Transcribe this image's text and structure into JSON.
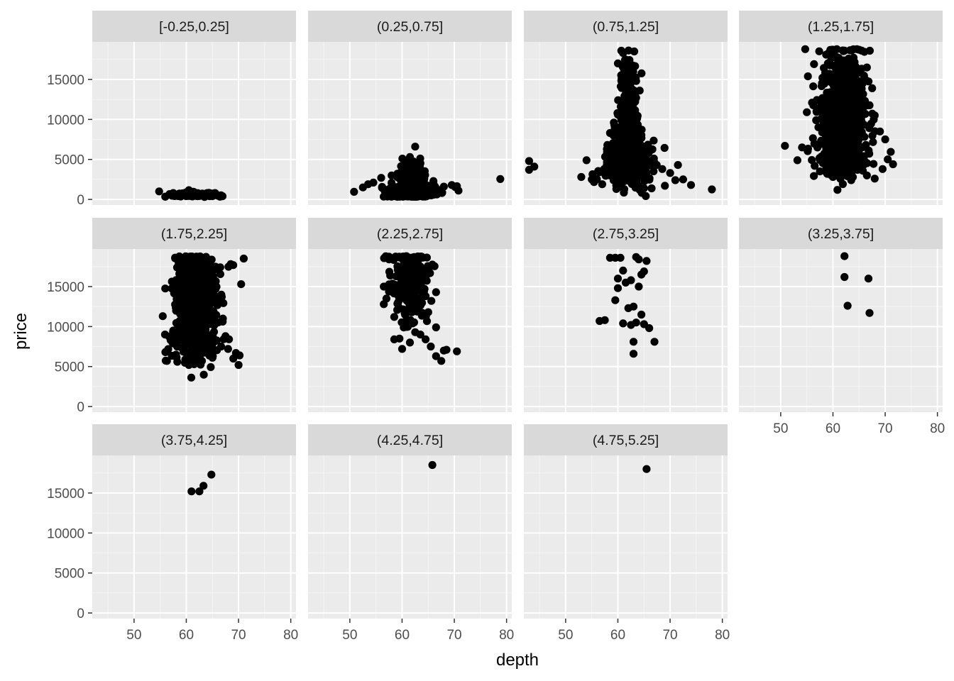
{
  "chart_data": {
    "type": "scatter",
    "facet_layout": "wrap",
    "xlabel": "depth",
    "ylabel": "price",
    "xlim": [
      42,
      81
    ],
    "ylim": [
      -700,
      19700
    ],
    "x_ticks": [
      50,
      60,
      70,
      80
    ],
    "y_ticks": [
      0,
      5000,
      10000,
      15000
    ],
    "grid": true,
    "point_color": "#000000",
    "panel_background": "#ebebeb",
    "strip_background": "#d9d9d9",
    "panels": [
      {
        "label": "[-0.25,0.25]",
        "clusters": [
          {
            "cx": 62.0,
            "cy": 550,
            "sx": 2.3,
            "sy": 170,
            "n": 100
          }
        ],
        "points": [
          [
            54.8,
            1000
          ],
          [
            56.0,
            350
          ],
          [
            58.0,
            520
          ],
          [
            60.5,
            1150
          ],
          [
            63.5,
            300
          ],
          [
            66.0,
            470
          ],
          [
            65.5,
            620
          ],
          [
            57.5,
            800
          ],
          [
            61.5,
            900
          ],
          [
            64.0,
            800
          ]
        ]
      },
      {
        "label": "(0.25,0.75]",
        "clusters": [
          {
            "cx": 61.8,
            "cy": 700,
            "sx": 2.2,
            "sy": 420,
            "n": 300
          },
          {
            "cx": 61.8,
            "cy": 1800,
            "sx": 1.6,
            "sy": 850,
            "n": 180
          },
          {
            "cx": 61.8,
            "cy": 3700,
            "sx": 1.0,
            "sy": 900,
            "n": 45
          }
        ],
        "points": [
          [
            50.8,
            950
          ],
          [
            52.5,
            1500
          ],
          [
            53.5,
            1900
          ],
          [
            54.5,
            2100
          ],
          [
            56.0,
            2700
          ],
          [
            58.0,
            3000
          ],
          [
            62.5,
            6600
          ],
          [
            61.5,
            5300
          ],
          [
            63.5,
            4500
          ],
          [
            66.0,
            2300
          ],
          [
            68.0,
            1600
          ],
          [
            69.5,
            1800
          ],
          [
            70.5,
            1650
          ],
          [
            70.8,
            1100
          ],
          [
            78.8,
            2550
          ],
          [
            66.5,
            900
          ],
          [
            67.5,
            1200
          ]
        ]
      },
      {
        "label": "(0.75,1.25]",
        "clusters": [
          {
            "cx": 61.9,
            "cy": 4700,
            "sx": 2.0,
            "sy": 1400,
            "n": 450
          },
          {
            "cx": 61.8,
            "cy": 9500,
            "sx": 1.0,
            "sy": 2500,
            "n": 200
          },
          {
            "cx": 61.8,
            "cy": 14500,
            "sx": 0.8,
            "sy": 2200,
            "n": 60
          }
        ],
        "points": [
          [
            43.0,
            4800
          ],
          [
            43.0,
            3700
          ],
          [
            44.0,
            4100
          ],
          [
            53.0,
            2800
          ],
          [
            54.0,
            4900
          ],
          [
            56.5,
            3400
          ],
          [
            58.0,
            6800
          ],
          [
            59.0,
            5600
          ],
          [
            60.0,
            17000
          ],
          [
            61.0,
            18300
          ],
          [
            62.0,
            16000
          ],
          [
            63.5,
            14800
          ],
          [
            65.5,
            5000
          ],
          [
            67.0,
            4600
          ],
          [
            68.5,
            3800
          ],
          [
            70.0,
            3300
          ],
          [
            71.0,
            2400
          ],
          [
            72.5,
            2500
          ],
          [
            74.0,
            1800
          ],
          [
            78.0,
            1250
          ],
          [
            71.5,
            4300
          ],
          [
            69.0,
            1700
          ],
          [
            65.0,
            1400
          ],
          [
            57.0,
            1900
          ],
          [
            55.0,
            2500
          ],
          [
            60.0,
            10600
          ],
          [
            63.5,
            12700
          ],
          [
            64.0,
            6900
          ],
          [
            58.5,
            8300
          ]
        ]
      },
      {
        "label": "(1.25,1.75]",
        "clusters": [
          {
            "cx": 61.8,
            "cy": 11000,
            "sx": 2.1,
            "sy": 3700,
            "n": 700
          },
          {
            "cx": 61.8,
            "cy": 5500,
            "sx": 2.6,
            "sy": 1300,
            "n": 150
          }
        ],
        "points": [
          [
            50.8,
            6700
          ],
          [
            53.2,
            4900
          ],
          [
            55.0,
            10900
          ],
          [
            56.0,
            12100
          ],
          [
            58.0,
            15200
          ],
          [
            59.5,
            18700
          ],
          [
            65.5,
            18600
          ],
          [
            66.5,
            16500
          ],
          [
            67.5,
            13900
          ],
          [
            68.0,
            10500
          ],
          [
            69.0,
            8500
          ],
          [
            70.0,
            7500
          ],
          [
            70.5,
            5000
          ],
          [
            71.5,
            4400
          ],
          [
            69.5,
            3800
          ],
          [
            68.0,
            2600
          ],
          [
            66.5,
            3000
          ],
          [
            63.5,
            2400
          ],
          [
            60.0,
            2800
          ],
          [
            57.5,
            3500
          ],
          [
            56.5,
            4200
          ]
        ]
      },
      {
        "label": "(1.75,2.25]",
        "clusters": [
          {
            "cx": 61.8,
            "cy": 14000,
            "sx": 1.9,
            "sy": 2900,
            "n": 700
          },
          {
            "cx": 61.8,
            "cy": 8000,
            "sx": 2.5,
            "sy": 1600,
            "n": 120
          }
        ],
        "points": [
          [
            55.5,
            11300
          ],
          [
            56.0,
            6800
          ],
          [
            56.3,
            5700
          ],
          [
            57.0,
            8300
          ],
          [
            57.5,
            9500
          ],
          [
            58.0,
            14000
          ],
          [
            66.5,
            13300
          ],
          [
            67.0,
            11000
          ],
          [
            67.5,
            8800
          ],
          [
            68.0,
            7200
          ],
          [
            69.0,
            6000
          ],
          [
            70.0,
            5200
          ],
          [
            70.2,
            6400
          ],
          [
            70.5,
            15300
          ],
          [
            71.0,
            18500
          ],
          [
            68.5,
            17800
          ],
          [
            66.5,
            17400
          ],
          [
            69.5,
            6700
          ],
          [
            60.5,
            5200
          ],
          [
            61.5,
            5300
          ],
          [
            63.0,
            5700
          ],
          [
            65.0,
            6100
          ]
        ]
      },
      {
        "label": "(2.25,2.75]",
        "clusters": [
          {
            "cx": 61.5,
            "cy": 15500,
            "sx": 1.7,
            "sy": 2300,
            "n": 260
          }
        ],
        "points": [
          [
            56.5,
            15000
          ],
          [
            56.5,
            12800
          ],
          [
            57.0,
            13500
          ],
          [
            57.5,
            18400
          ],
          [
            58.5,
            8400
          ],
          [
            59.5,
            8500
          ],
          [
            60.0,
            7200
          ],
          [
            61.5,
            8000
          ],
          [
            62.5,
            9300
          ],
          [
            63.5,
            9000
          ],
          [
            64.5,
            8400
          ],
          [
            65.5,
            7500
          ],
          [
            66.5,
            6300
          ],
          [
            67.5,
            5700
          ],
          [
            68.0,
            7000
          ],
          [
            68.5,
            7100
          ],
          [
            70.5,
            6900
          ],
          [
            66.5,
            9900
          ],
          [
            65.0,
            11800
          ],
          [
            64.5,
            13800
          ],
          [
            66.5,
            14300
          ],
          [
            63.5,
            18700
          ],
          [
            62.0,
            10400
          ],
          [
            60.5,
            11700
          ],
          [
            58.5,
            11200
          ]
        ]
      },
      {
        "label": "(2.75,3.25]",
        "clusters": [],
        "points": [
          [
            56.5,
            10700
          ],
          [
            57.5,
            10800
          ],
          [
            58.5,
            18600
          ],
          [
            59.5,
            18600
          ],
          [
            60.5,
            18600
          ],
          [
            61.0,
            17000
          ],
          [
            63.5,
            18700
          ],
          [
            64.0,
            18400
          ],
          [
            65.5,
            18200
          ],
          [
            64.5,
            16500
          ],
          [
            65.0,
            16900
          ],
          [
            60.0,
            16000
          ],
          [
            61.5,
            15500
          ],
          [
            62.5,
            15800
          ],
          [
            64.0,
            15000
          ],
          [
            60.0,
            14800
          ],
          [
            59.5,
            13300
          ],
          [
            62.0,
            12300
          ],
          [
            63.0,
            12500
          ],
          [
            62.5,
            10200
          ],
          [
            63.5,
            10500
          ],
          [
            65.0,
            10300
          ],
          [
            64.5,
            11500
          ],
          [
            66.0,
            9800
          ],
          [
            61.0,
            10400
          ],
          [
            63.0,
            8100
          ],
          [
            63.0,
            6600
          ],
          [
            67.0,
            8100
          ]
        ]
      },
      {
        "label": "(3.25,3.75]",
        "clusters": [],
        "points": [
          [
            62.2,
            18800
          ],
          [
            62.2,
            16200
          ],
          [
            66.8,
            16000
          ],
          [
            62.8,
            12600
          ],
          [
            67.0,
            11700
          ]
        ]
      },
      {
        "label": "(3.75,4.25]",
        "clusters": [],
        "points": [
          [
            61.0,
            15200
          ],
          [
            62.5,
            15200
          ],
          [
            63.3,
            15900
          ],
          [
            64.8,
            17300
          ]
        ]
      },
      {
        "label": "(4.25,4.75]",
        "clusters": [],
        "points": [
          [
            65.8,
            18500
          ]
        ]
      },
      {
        "label": "(4.75,5.25]",
        "clusters": [],
        "points": [
          [
            65.5,
            18000
          ]
        ]
      }
    ]
  }
}
